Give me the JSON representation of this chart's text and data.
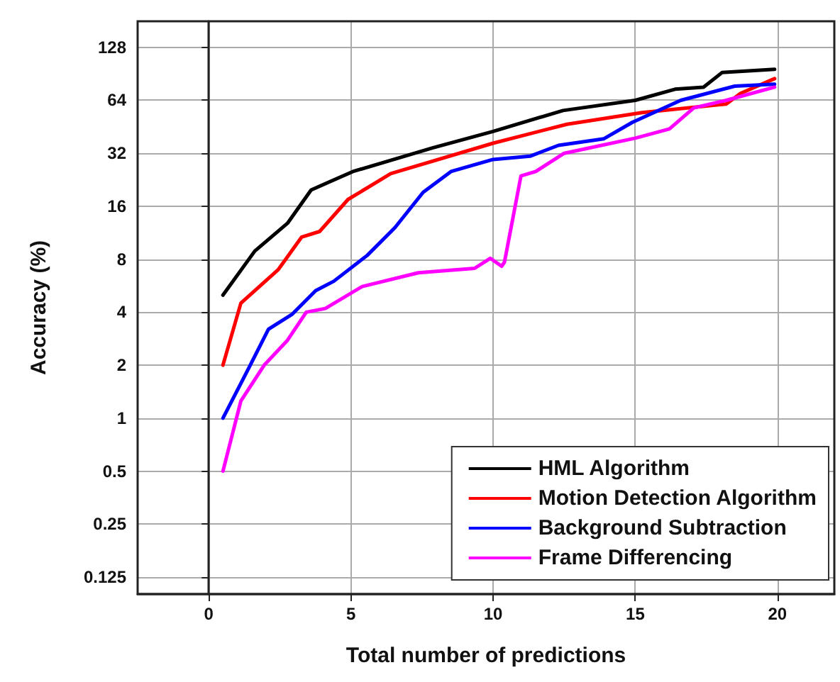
{
  "chart_data": {
    "type": "line",
    "xlabel": "Total number of predictions",
    "ylabel": "Accuracy (%)",
    "log": "y",
    "grid": true,
    "legend": "bottom right",
    "line_style": "solid",
    "marker": "none",
    "xlim": [
      -2.5,
      22
    ],
    "xticks": [
      0,
      5,
      10,
      15,
      20
    ],
    "ylim": [
      0.1,
      180
    ],
    "yticks": [
      0.125,
      0.25,
      0.5,
      1,
      2,
      4,
      8,
      16,
      32,
      64,
      128
    ],
    "series": [
      {
        "name": "HML Algorithm",
        "color": "#000000",
        "x": [
          0.5,
          1.62,
          2.77,
          3.6,
          5.07,
          7.87,
          10,
          12.46,
          15,
          16.4,
          17.4,
          18.05,
          19.9
        ],
        "values": [
          5,
          8.9,
          12.8,
          19.8,
          25.2,
          34.3,
          42.6,
          56,
          64,
          74,
          76,
          92,
          96
        ]
      },
      {
        "name": "Motion Detection Algorithm",
        "color": "#ff0000",
        "x": [
          0.5,
          1.13,
          2.45,
          3.27,
          3.9,
          4.9,
          6.4,
          10,
          12.6,
          15.25,
          18.2,
          18.7,
          19.9
        ],
        "values": [
          2,
          4.5,
          7,
          10.7,
          11.5,
          17.5,
          24.5,
          36.5,
          46.8,
          54.5,
          61,
          70,
          85
        ]
      },
      {
        "name": "Background Subtraction",
        "color": "#0000ff",
        "x": [
          0.5,
          1.46,
          2.1,
          2.94,
          3.76,
          4.4,
          5.57,
          6.55,
          7.54,
          8.52,
          10,
          11.3,
          12.3,
          13.9,
          14.9,
          16.6,
          18.5,
          19.9
        ],
        "values": [
          1,
          2,
          3.2,
          3.9,
          5.3,
          6,
          8.4,
          12.1,
          19.2,
          25.2,
          29.5,
          30.8,
          35.5,
          38.7,
          48,
          64,
          77,
          79
        ]
      },
      {
        "name": "Frame Differencing",
        "color": "#ff00ff",
        "x": [
          0.5,
          1.13,
          1.95,
          2.77,
          3.43,
          4.1,
          5.4,
          7.37,
          9.35,
          9.9,
          10.3,
          10.4,
          10.98,
          11.5,
          12.5,
          15,
          16.2,
          17.06,
          18.2,
          19.9
        ],
        "values": [
          0.5,
          1.25,
          2,
          2.77,
          4,
          4.2,
          5.6,
          6.7,
          7.1,
          8.1,
          7.3,
          7.7,
          23.8,
          25.2,
          32,
          39,
          44,
          58,
          64,
          76
        ]
      }
    ]
  }
}
